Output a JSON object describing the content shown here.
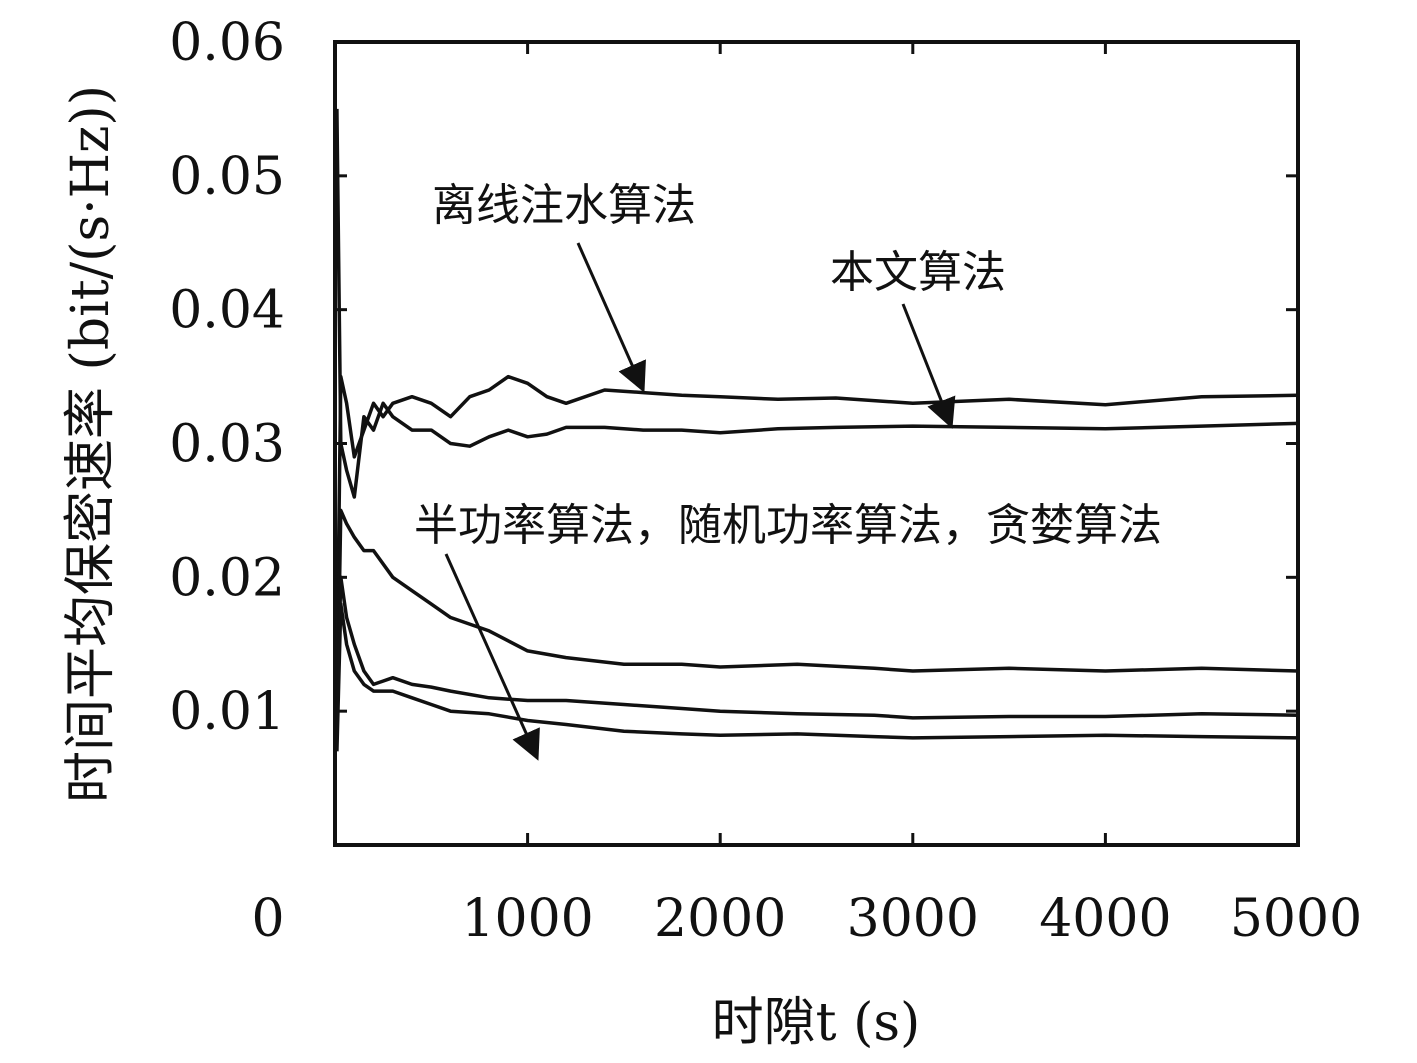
{
  "chart_data": {
    "type": "line",
    "title": "",
    "xlabel": "时隙t (s)",
    "ylabel": "时间平均保密速率 (bit/(s·Hz))",
    "xlim": [
      0,
      5000
    ],
    "ylim": [
      0,
      0.06
    ],
    "xticks": [
      "0",
      "1000",
      "2000",
      "3000",
      "4000",
      "5000"
    ],
    "yticks": [
      "0.01",
      "0.02",
      "0.03",
      "0.04",
      "0.05",
      "0.06"
    ],
    "grid": false,
    "legend": "none",
    "line_color": "#111111",
    "series": [
      {
        "x": [
          10,
          30,
          60,
          100,
          150,
          200,
          250,
          300,
          400,
          500,
          600,
          700,
          800,
          900,
          1000,
          1100,
          1200,
          1400,
          1600,
          1800,
          2000,
          2300,
          2600,
          3000,
          3500,
          4000,
          4500,
          5000
        ],
        "values": [
          0.012,
          0.035,
          0.033,
          0.029,
          0.031,
          0.033,
          0.032,
          0.033,
          0.0335,
          0.033,
          0.032,
          0.0335,
          0.034,
          0.035,
          0.0345,
          0.0335,
          0.033,
          0.034,
          0.0338,
          0.0336,
          0.0335,
          0.0333,
          0.0334,
          0.033,
          0.0333,
          0.0329,
          0.0335,
          0.0336
        ]
      },
      {
        "x": [
          10,
          30,
          60,
          100,
          150,
          200,
          250,
          300,
          400,
          500,
          600,
          700,
          800,
          900,
          1000,
          1100,
          1200,
          1400,
          1600,
          1800,
          2000,
          2300,
          2600,
          3000,
          3500,
          4000,
          4500,
          5000
        ],
        "values": [
          0.055,
          0.03,
          0.028,
          0.026,
          0.032,
          0.031,
          0.033,
          0.032,
          0.031,
          0.031,
          0.03,
          0.0298,
          0.0305,
          0.031,
          0.0305,
          0.0307,
          0.0312,
          0.0312,
          0.031,
          0.031,
          0.0308,
          0.0311,
          0.0312,
          0.0313,
          0.0312,
          0.0311,
          0.0313,
          0.0315
        ]
      },
      {
        "x": [
          10,
          30,
          60,
          100,
          150,
          200,
          300,
          400,
          500,
          600,
          800,
          1000,
          1200,
          1500,
          1800,
          2000,
          2400,
          2800,
          3000,
          3500,
          4000,
          4500,
          5000
        ],
        "values": [
          0.008,
          0.025,
          0.024,
          0.023,
          0.022,
          0.022,
          0.02,
          0.019,
          0.018,
          0.017,
          0.016,
          0.0145,
          0.014,
          0.0135,
          0.0135,
          0.0133,
          0.0135,
          0.0132,
          0.013,
          0.0132,
          0.013,
          0.0132,
          0.013
        ]
      },
      {
        "x": [
          10,
          30,
          60,
          100,
          150,
          200,
          300,
          400,
          500,
          600,
          800,
          1000,
          1200,
          1500,
          1800,
          2000,
          2400,
          2800,
          3000,
          3500,
          4000,
          4500,
          5000
        ],
        "values": [
          0.009,
          0.02,
          0.017,
          0.015,
          0.013,
          0.012,
          0.0125,
          0.012,
          0.0118,
          0.0115,
          0.011,
          0.0108,
          0.0108,
          0.0105,
          0.0102,
          0.01,
          0.0098,
          0.0097,
          0.0095,
          0.0096,
          0.0096,
          0.0098,
          0.0097
        ]
      },
      {
        "x": [
          10,
          30,
          60,
          100,
          150,
          200,
          300,
          400,
          500,
          600,
          800,
          1000,
          1200,
          1500,
          1800,
          2000,
          2400,
          2800,
          3000,
          3500,
          4000,
          4500,
          5000
        ],
        "values": [
          0.007,
          0.018,
          0.015,
          0.013,
          0.012,
          0.0115,
          0.0115,
          0.011,
          0.0105,
          0.01,
          0.0098,
          0.0093,
          0.009,
          0.0085,
          0.0083,
          0.0082,
          0.0083,
          0.0081,
          0.008,
          0.0081,
          0.0082,
          0.0081,
          0.008
        ]
      }
    ],
    "annotations": [
      {
        "text": "离线注水算法",
        "target": [
          1600,
          0.034
        ]
      },
      {
        "text": "本文算法",
        "target": [
          3200,
          0.0313
        ]
      },
      {
        "text": "半功率算法，随机功率算法，贪婪算法",
        "target": [
          1050,
          0.0065
        ]
      }
    ]
  }
}
